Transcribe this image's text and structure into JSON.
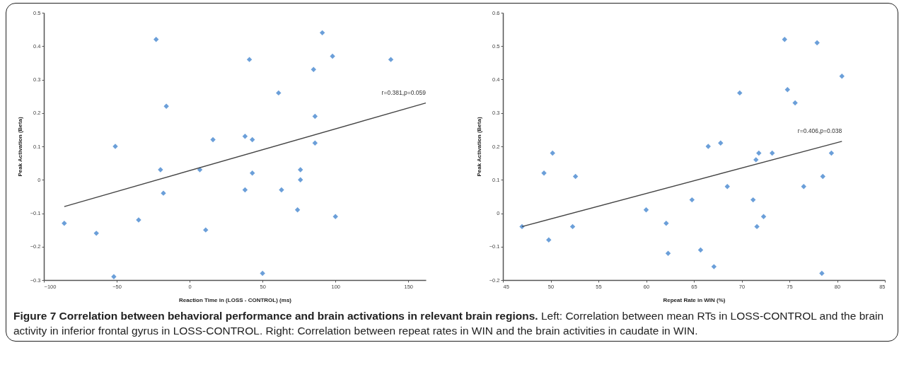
{
  "chart_data": [
    {
      "type": "scatter",
      "xlabel": "Reaction Time in (LOSS - CONTROL) (ms)",
      "ylabel": "Peak Activation (Beta)",
      "xlim": [
        -100,
        162
      ],
      "xticks": [
        -100,
        -50,
        0,
        50,
        100,
        150
      ],
      "ylim": [
        -0.3,
        0.5
      ],
      "yticks": [
        -0.3,
        -0.2,
        -0.1,
        {
          "value": 0,
          "label": "0"
        },
        0.1,
        0.2,
        0.3,
        0.4,
        0.5
      ],
      "grid": false,
      "series": [
        {
          "marker": "diamond",
          "color": "#6b9fd9",
          "x": [
            -86,
            -64,
            -52,
            -51,
            -35,
            -23,
            -20,
            -18,
            -16,
            7,
            11,
            16,
            38,
            38,
            41,
            43,
            43,
            50,
            61,
            63,
            74,
            76,
            76,
            85,
            86,
            86,
            91,
            98,
            100,
            138
          ],
          "values": [
            -0.13,
            -0.16,
            -0.29,
            0.1,
            -0.12,
            0.42,
            0.03,
            -0.04,
            0.22,
            0.03,
            -0.15,
            0.12,
            -0.03,
            0.13,
            0.36,
            0.12,
            0.02,
            -0.28,
            0.26,
            -0.03,
            -0.09,
            0.03,
            0,
            0.33,
            0.19,
            0.11,
            0.44,
            0.37,
            -0.11,
            0.36
          ]
        },
        {
          "type": "line",
          "color": "#444444",
          "x": [
            -86,
            162
          ],
          "values": [
            -0.08,
            0.23
          ]
        }
      ],
      "annotations": [
        "r=0.381,p=0.059",
        "Figure 7 Correlation between behavioral performance and brain activations in relevant brain regions.",
        "Left: Correlation between mean RTs in LOSS-CONTROL and the brain activity in inferior frontal gyrus in LOSS-CONTROL. Right: Correlation between repeat rates in WIN and the brain activities in caudate in WIN."
      ]
    },
    {
      "type": "scatter",
      "xlabel": "Repeat Rate in WIN (%)",
      "ylabel": "Peak Activation (Beta)",
      "xlim": [
        45,
        85
      ],
      "xticks": [
        45,
        50,
        55,
        60,
        65,
        70,
        75,
        80,
        85
      ],
      "ylim": [
        -0.2,
        0.6
      ],
      "yticks": [
        -0.2,
        -0.1,
        {
          "value": 0,
          "label": "0"
        },
        0.1,
        0.2,
        0.3,
        0.4,
        0.5,
        0.6
      ],
      "grid": false,
      "series": [
        {
          "marker": "diamond",
          "color": "#6b9fd9",
          "x": [
            47,
            49.3,
            49.8,
            50.2,
            52.3,
            52.6,
            60,
            62.1,
            62.3,
            64.8,
            65.7,
            66.5,
            67.1,
            67.8,
            68.5,
            69.8,
            71.2,
            71.5,
            71.6,
            71.8,
            72.3,
            73.2,
            74.5,
            74.8,
            75.6,
            76.5,
            77.9,
            78.4,
            78.5,
            79.4,
            80.5
          ],
          "values": [
            -0.04,
            0.12,
            -0.08,
            0.18,
            -0.04,
            0.11,
            0.01,
            -0.03,
            -0.12,
            0.04,
            -0.11,
            0.2,
            -0.16,
            0.21,
            0.08,
            0.36,
            0.04,
            0.16,
            -0.04,
            0.18,
            -0.01,
            0.18,
            0.52,
            0.37,
            0.33,
            0.08,
            0.51,
            -0.18,
            0.11,
            0.18,
            0.41
          ]
        },
        {
          "type": "line",
          "color": "#444444",
          "x": [
            47,
            80.5
          ],
          "values": [
            -0.04,
            0.215
          ]
        }
      ],
      "annotations": [
        "r=0.406,p=0.038"
      ]
    }
  ]
}
